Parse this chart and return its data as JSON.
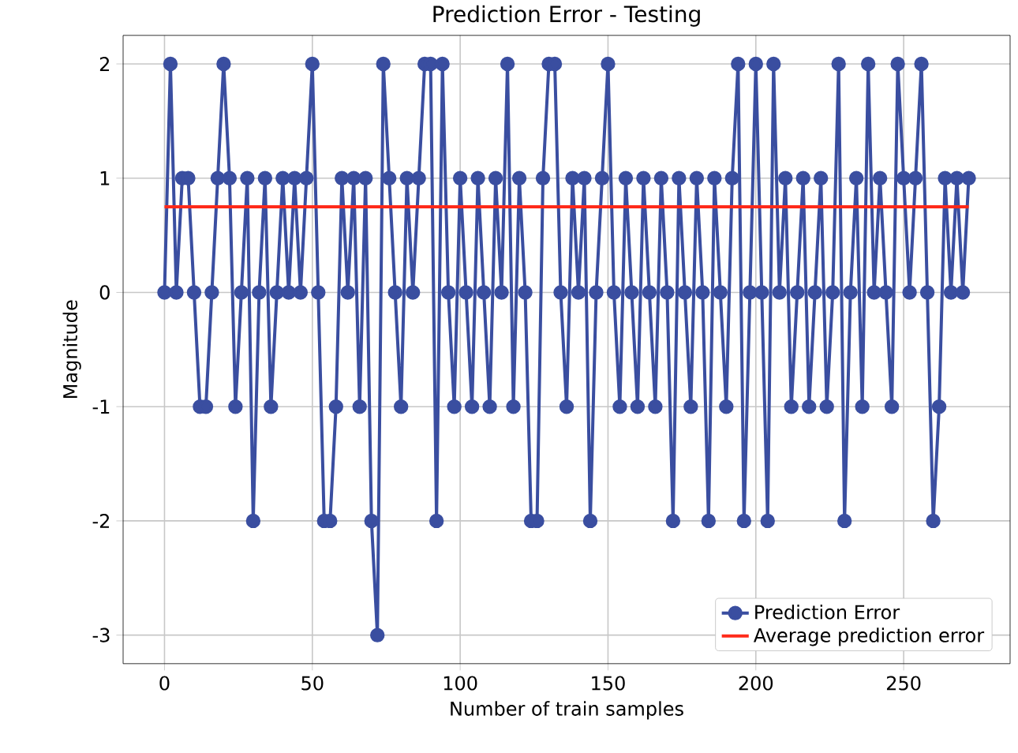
{
  "chart_data": {
    "type": "line",
    "title": "Prediction Error - Testing",
    "xlabel": "Number of train samples",
    "ylabel": "Magnitude",
    "series": [
      {
        "name": "Prediction Error",
        "color": "#3a4ea0",
        "marker": "circle",
        "x": [
          0,
          2,
          4,
          6,
          8,
          10,
          12,
          14,
          16,
          18,
          20,
          22,
          24,
          26,
          28,
          30,
          32,
          34,
          36,
          38,
          40,
          42,
          44,
          46,
          48,
          50,
          52,
          54,
          56,
          58,
          60,
          62,
          64,
          66,
          68,
          70,
          72,
          74,
          76,
          78,
          80,
          82,
          84,
          86,
          88,
          90,
          92,
          94,
          96,
          98,
          100,
          102,
          104,
          106,
          108,
          110,
          112,
          114,
          116,
          118,
          120,
          122,
          124,
          126,
          128,
          130,
          132,
          134,
          136,
          138,
          140,
          142,
          144,
          146,
          148,
          150,
          152,
          154,
          156,
          158,
          160,
          162,
          164,
          166,
          168,
          170,
          172,
          174,
          176,
          178,
          180,
          182,
          184,
          186,
          188,
          190,
          192,
          194,
          196,
          198,
          200,
          202,
          204,
          206,
          208,
          210,
          212,
          214,
          216,
          218,
          220,
          222,
          224,
          226,
          228,
          230,
          232,
          234,
          236,
          238,
          240,
          242,
          244,
          246,
          248,
          250,
          252,
          254,
          256,
          258,
          260,
          262,
          264,
          266,
          268,
          270,
          272
        ],
        "values": [
          0,
          2,
          0,
          1,
          1,
          0,
          -1,
          -1,
          0,
          1,
          2,
          1,
          -1,
          0,
          1,
          -2,
          0,
          1,
          -1,
          0,
          1,
          0,
          1,
          0,
          1,
          2,
          0,
          -2,
          -2,
          -1,
          1,
          0,
          1,
          -1,
          1,
          -2,
          -3,
          2,
          1,
          0,
          -1,
          1,
          0,
          1,
          2,
          2,
          -2,
          2,
          0,
          -1,
          1,
          0,
          -1,
          1,
          0,
          -1,
          1,
          0,
          2,
          -1,
          1,
          0,
          -2,
          -2,
          1,
          2,
          2,
          0,
          -1,
          1,
          0,
          1,
          -2,
          0,
          1,
          2,
          0,
          -1,
          1,
          0,
          -1,
          1,
          0,
          -1,
          1,
          0,
          -2,
          1,
          0,
          -1,
          1,
          0,
          -2,
          1,
          0,
          -1,
          1,
          2,
          -2,
          0,
          2,
          0,
          -2,
          2,
          0,
          1,
          -1,
          0,
          1,
          -1,
          0,
          1,
          -1,
          0,
          2,
          -2,
          0,
          1,
          -1,
          2,
          0,
          1,
          0,
          -1,
          2,
          1,
          0,
          1,
          2,
          0,
          -2,
          -1,
          1,
          0,
          1,
          0,
          1
        ]
      },
      {
        "name": "Average prediction error",
        "color": "#ff2a1a",
        "marker": "none",
        "x": [
          0,
          272
        ],
        "values": [
          0.75,
          0.75
        ]
      }
    ],
    "xlim": [
      -14,
      286
    ],
    "ylim": [
      -3.25,
      2.25
    ],
    "xticks": [
      0,
      50,
      100,
      150,
      200,
      250
    ],
    "yticks": [
      -3,
      -2,
      -1,
      0,
      1,
      2
    ],
    "grid": true,
    "legend": "bottom right",
    "line_style": "solid"
  }
}
